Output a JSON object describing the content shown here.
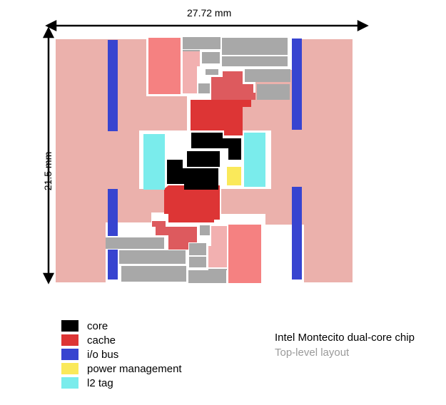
{
  "dimensions": {
    "width": "27.72 mm",
    "height": "21.5 mm"
  },
  "legend": [
    {
      "label": "core",
      "color": "#000000"
    },
    {
      "label": "cache",
      "color": "#dd3535"
    },
    {
      "label": "i/o bus",
      "color": "#3744d0"
    },
    {
      "label": "power management",
      "color": "#fae95a"
    },
    {
      "label": "l2 tag",
      "color": "#7aecec"
    }
  ],
  "caption": {
    "title": "Intel Montecito dual-core chip",
    "subtitle": "Top-level layout"
  },
  "colors": {
    "background_block": "#ebb1ac",
    "cache_light": "#f58181",
    "cache_mid": "#dd5a5e",
    "misc_grey": "#a8a8a8",
    "arrow": "#000000"
  }
}
